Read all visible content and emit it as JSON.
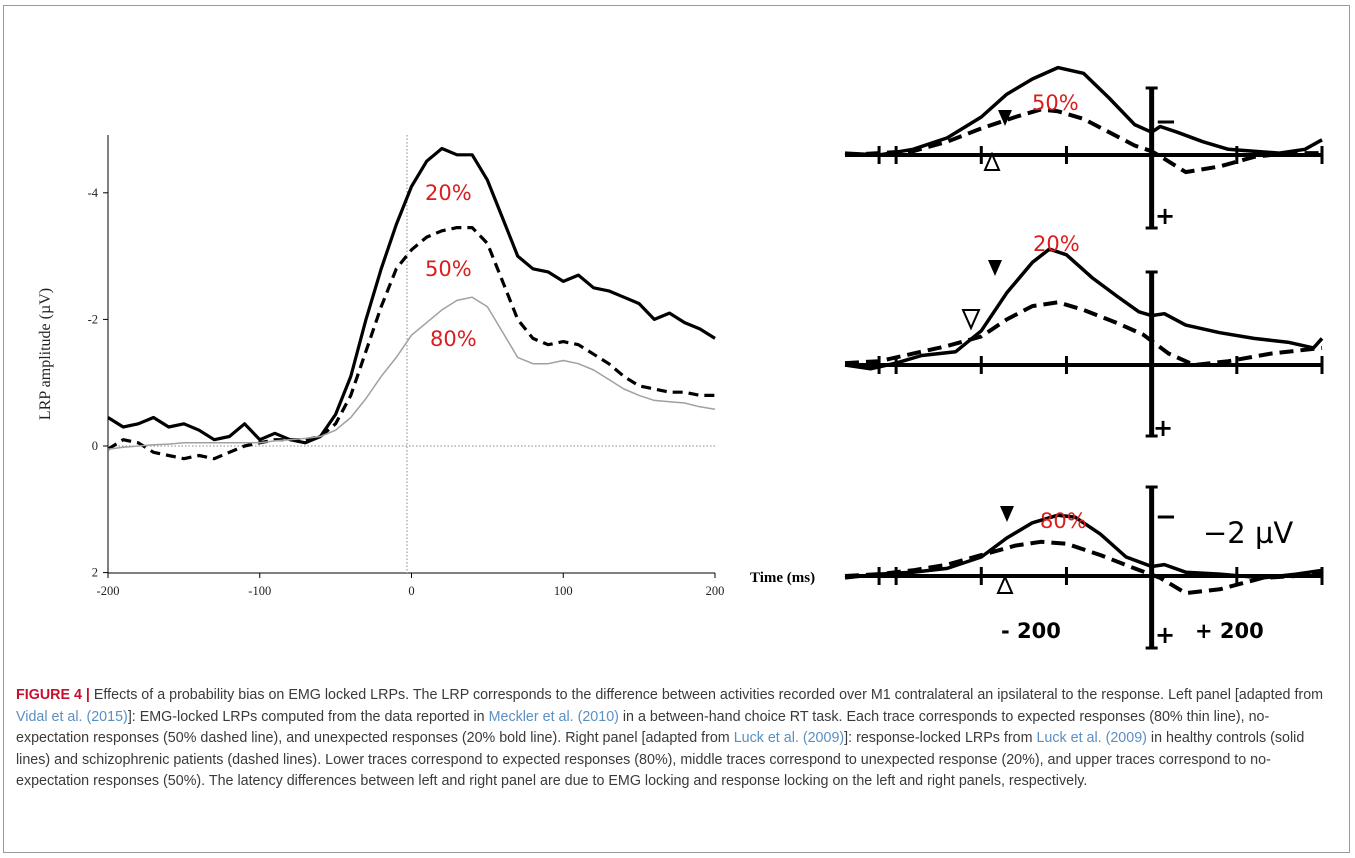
{
  "chart_data": [
    {
      "type": "line",
      "ylabel": "LRP amplitude (µV)",
      "xlabel": "",
      "xlim": [
        -200,
        200
      ],
      "ylim": [
        2,
        -5
      ],
      "y_inverted": true,
      "x_ticks": [
        "-200",
        "-100",
        "0",
        "100",
        "200"
      ],
      "y_ticks": [
        "-4",
        "-2",
        "0",
        "2"
      ],
      "grid": false,
      "series": [
        {
          "name": "20%",
          "style": "bold solid",
          "x": [
            -200,
            -190,
            -180,
            -170,
            -160,
            -150,
            -140,
            -130,
            -120,
            -110,
            -100,
            -90,
            -80,
            -70,
            -60,
            -50,
            -40,
            -30,
            -20,
            -10,
            0,
            10,
            20,
            30,
            40,
            50,
            60,
            70,
            80,
            90,
            100,
            110,
            120,
            130,
            140,
            150,
            160,
            170,
            180,
            190,
            200
          ],
          "y": [
            -0.45,
            -0.3,
            -0.35,
            -0.45,
            -0.3,
            -0.35,
            -0.25,
            -0.1,
            -0.15,
            -0.35,
            -0.1,
            -0.2,
            -0.1,
            -0.05,
            -0.15,
            -0.5,
            -1.1,
            -2.0,
            -2.8,
            -3.5,
            -4.1,
            -4.5,
            -4.7,
            -4.6,
            -4.6,
            -4.2,
            -3.6,
            -3.0,
            -2.8,
            -2.75,
            -2.6,
            -2.7,
            -2.5,
            -2.45,
            -2.35,
            -2.25,
            -2.0,
            -2.1,
            -1.95,
            -1.85,
            -1.7
          ]
        },
        {
          "name": "50%",
          "style": "dashed",
          "x": [
            -200,
            -190,
            -180,
            -170,
            -160,
            -150,
            -140,
            -130,
            -120,
            -110,
            -100,
            -90,
            -80,
            -70,
            -60,
            -50,
            -40,
            -30,
            -20,
            -10,
            0,
            10,
            20,
            30,
            40,
            50,
            60,
            70,
            80,
            90,
            100,
            110,
            120,
            130,
            140,
            150,
            160,
            170,
            180,
            190,
            200
          ],
          "y": [
            0.05,
            -0.1,
            -0.05,
            0.1,
            0.15,
            0.2,
            0.15,
            0.2,
            0.1,
            0.0,
            -0.05,
            -0.1,
            -0.1,
            -0.1,
            -0.15,
            -0.35,
            -0.8,
            -1.5,
            -2.2,
            -2.8,
            -3.1,
            -3.3,
            -3.4,
            -3.45,
            -3.45,
            -3.2,
            -2.6,
            -2.0,
            -1.7,
            -1.6,
            -1.65,
            -1.6,
            -1.45,
            -1.3,
            -1.1,
            -0.95,
            -0.9,
            -0.85,
            -0.85,
            -0.8,
            -0.8
          ]
        },
        {
          "name": "80%",
          "style": "thin solid",
          "x": [
            -200,
            -190,
            -180,
            -170,
            -160,
            -150,
            -140,
            -130,
            -120,
            -110,
            -100,
            -90,
            -80,
            -70,
            -60,
            -50,
            -40,
            -30,
            -20,
            -10,
            0,
            10,
            20,
            30,
            40,
            50,
            60,
            70,
            80,
            90,
            100,
            110,
            120,
            130,
            140,
            150,
            160,
            170,
            180,
            190,
            200
          ],
          "y": [
            0.05,
            0.02,
            0.0,
            -0.02,
            -0.03,
            -0.05,
            -0.05,
            -0.05,
            -0.05,
            -0.05,
            -0.05,
            -0.08,
            -0.1,
            -0.12,
            -0.15,
            -0.25,
            -0.45,
            -0.75,
            -1.1,
            -1.4,
            -1.75,
            -1.95,
            -2.15,
            -2.3,
            -2.35,
            -2.2,
            -1.8,
            -1.4,
            -1.3,
            -1.3,
            -1.35,
            -1.3,
            -1.2,
            -1.05,
            -0.9,
            -0.8,
            -0.72,
            -0.7,
            -0.68,
            -0.62,
            -0.58
          ]
        }
      ],
      "labels": [
        "20%",
        "50%",
        "80%"
      ]
    },
    {
      "type": "line",
      "panels": [
        {
          "label": "50%",
          "solid": [
            [
              -360,
              0.05
            ],
            [
              -320,
              0.0
            ],
            [
              -280,
              0.15
            ],
            [
              -240,
              0.45
            ],
            [
              -200,
              1.0
            ],
            [
              -170,
              1.6
            ],
            [
              -140,
              2.0
            ],
            [
              -110,
              2.3
            ],
            [
              -80,
              2.15
            ],
            [
              -50,
              1.5
            ],
            [
              -20,
              0.8
            ],
            [
              0,
              0.6
            ],
            [
              10,
              0.75
            ],
            [
              30,
              0.6
            ],
            [
              60,
              0.35
            ],
            [
              90,
              0.15
            ],
            [
              120,
              0.1
            ],
            [
              150,
              0.05
            ],
            [
              180,
              0.15
            ],
            [
              200,
              0.4
            ]
          ],
          "dashed": [
            [
              -360,
              0.0
            ],
            [
              -320,
              0.05
            ],
            [
              -280,
              0.1
            ],
            [
              -240,
              0.35
            ],
            [
              -200,
              0.7
            ],
            [
              -160,
              1.0
            ],
            [
              -130,
              1.2
            ],
            [
              -110,
              1.15
            ],
            [
              -80,
              0.95
            ],
            [
              -50,
              0.6
            ],
            [
              -20,
              0.25
            ],
            [
              0,
              0.1
            ],
            [
              15,
              -0.1
            ],
            [
              40,
              -0.45
            ],
            [
              80,
              -0.3
            ],
            [
              120,
              -0.05
            ],
            [
              160,
              0.05
            ],
            [
              200,
              0.05
            ]
          ]
        },
        {
          "label": "20%",
          "solid": [
            [
              -360,
              0.0
            ],
            [
              -330,
              -0.1
            ],
            [
              -300,
              0.05
            ],
            [
              -270,
              0.25
            ],
            [
              -230,
              0.35
            ],
            [
              -200,
              0.9
            ],
            [
              -170,
              1.9
            ],
            [
              -140,
              2.7
            ],
            [
              -120,
              3.05
            ],
            [
              -100,
              2.9
            ],
            [
              -70,
              2.3
            ],
            [
              -40,
              1.8
            ],
            [
              -15,
              1.4
            ],
            [
              0,
              1.3
            ],
            [
              15,
              1.35
            ],
            [
              40,
              1.05
            ],
            [
              80,
              0.85
            ],
            [
              120,
              0.7
            ],
            [
              160,
              0.6
            ],
            [
              190,
              0.45
            ],
            [
              200,
              0.7
            ]
          ],
          "dashed": [
            [
              -360,
              0.05
            ],
            [
              -320,
              0.1
            ],
            [
              -280,
              0.3
            ],
            [
              -240,
              0.5
            ],
            [
              -200,
              0.75
            ],
            [
              -170,
              1.2
            ],
            [
              -140,
              1.55
            ],
            [
              -110,
              1.65
            ],
            [
              -80,
              1.45
            ],
            [
              -40,
              1.1
            ],
            [
              -10,
              0.8
            ],
            [
              20,
              0.3
            ],
            [
              50,
              0.0
            ],
            [
              90,
              0.1
            ],
            [
              140,
              0.3
            ],
            [
              200,
              0.45
            ]
          ]
        },
        {
          "label": "80%",
          "solid": [
            [
              -360,
              -0.05
            ],
            [
              -320,
              0.05
            ],
            [
              -280,
              0.1
            ],
            [
              -240,
              0.2
            ],
            [
              -200,
              0.5
            ],
            [
              -170,
              1.0
            ],
            [
              -140,
              1.4
            ],
            [
              -110,
              1.6
            ],
            [
              -90,
              1.55
            ],
            [
              -60,
              1.1
            ],
            [
              -30,
              0.5
            ],
            [
              0,
              0.25
            ],
            [
              15,
              0.3
            ],
            [
              40,
              0.1
            ],
            [
              80,
              0.05
            ],
            [
              130,
              -0.05
            ],
            [
              170,
              0.05
            ],
            [
              200,
              0.15
            ]
          ],
          "dashed": [
            [
              -360,
              0.0
            ],
            [
              -320,
              0.05
            ],
            [
              -280,
              0.15
            ],
            [
              -240,
              0.3
            ],
            [
              -200,
              0.55
            ],
            [
              -160,
              0.8
            ],
            [
              -130,
              0.9
            ],
            [
              -100,
              0.85
            ],
            [
              -60,
              0.55
            ],
            [
              -20,
              0.2
            ],
            [
              10,
              -0.05
            ],
            [
              40,
              -0.45
            ],
            [
              80,
              -0.35
            ],
            [
              130,
              -0.05
            ],
            [
              170,
              0.0
            ],
            [
              200,
              0.1
            ]
          ]
        }
      ],
      "xlabel": "Time (ms)",
      "x_tick_labels": [
        "- 200",
        "+ 200"
      ],
      "scale_bar": "−2 µV",
      "sign_minus": "−",
      "sign_plus": "+"
    }
  ],
  "caption": {
    "label": "FIGURE 4 |",
    "segments": [
      {
        "text": " Effects of a probability bias on EMG locked LRPs. The LRP corresponds to the difference between activities recorded over M1 contralateral an ipsilateral to the response. Left panel [adapted from ",
        "ref": false
      },
      {
        "text": "Vidal et al. (2015)",
        "ref": true
      },
      {
        "text": "]: EMG-locked LRPs computed from the data reported in ",
        "ref": false
      },
      {
        "text": "Meckler et al. (2010)",
        "ref": true
      },
      {
        "text": " in a between-hand choice RT task. Each trace corresponds to expected responses (80% thin line), no-expectation responses (50% dashed line), and unexpected responses (20% bold line). Right panel [adapted from ",
        "ref": false
      },
      {
        "text": "Luck et al. (2009)",
        "ref": true
      },
      {
        "text": "]: response-locked LRPs from ",
        "ref": false
      },
      {
        "text": "Luck et al. (2009)",
        "ref": true
      },
      {
        "text": " in healthy controls (solid lines) and schizophrenic patients (dashed lines). Lower traces correspond to expected responses (80%), middle traces correspond to unexpected response (20%), and upper traces correspond to no-expectation responses (50%). The latency differences between left and right panel are due to EMG locking and response locking on the left and right panels, respectively.",
        "ref": false
      }
    ]
  },
  "colors": {
    "label_red": "#d81e1e",
    "caption_red": "#c8102e",
    "link_blue": "#5a8fc2",
    "trace": "#000000",
    "thin_trace": "#a0a0a0"
  }
}
